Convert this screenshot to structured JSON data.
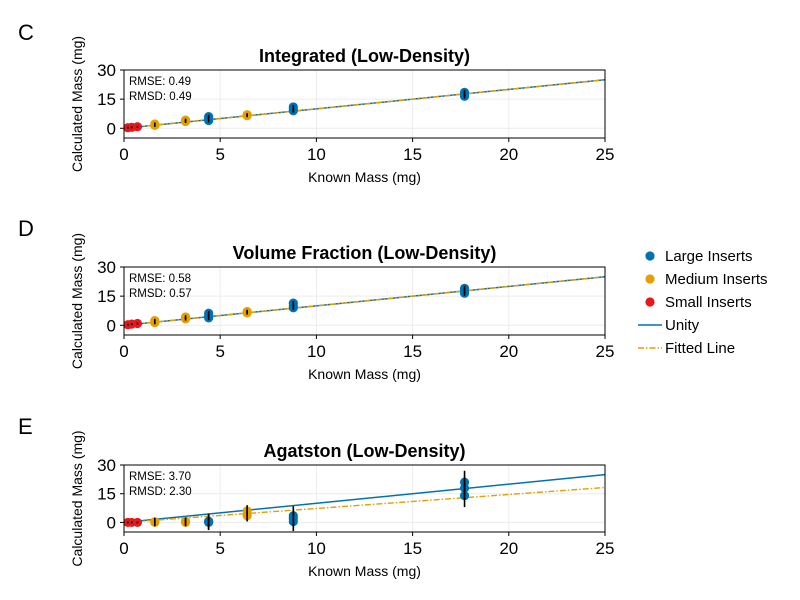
{
  "chart_data": [
    {
      "type": "scatter",
      "panel_label": "C",
      "title": "Integrated (Low-Density)",
      "xlabel": "Known Mass (mg)",
      "ylabel": "Calculated Mass (mg)",
      "xlim": [
        0,
        25
      ],
      "ylim": [
        -5,
        30
      ],
      "xticks": [
        0,
        5,
        10,
        15,
        20,
        25
      ],
      "yticks": [
        0,
        15,
        30
      ],
      "grid": true,
      "stats": [
        "RMSE: 0.49",
        "RMSD: 0.49"
      ],
      "series": [
        {
          "name": "Large Inserts",
          "color": "#0072b2",
          "x": [
            4.4,
            4.4,
            4.4,
            8.8,
            8.8,
            8.8,
            17.7,
            17.7,
            17.7
          ],
          "y": [
            4.0,
            5.0,
            6.0,
            9.0,
            10.0,
            11.0,
            16.5,
            17.5,
            18.5
          ],
          "err": [
            1.0,
            1.0,
            1.0,
            1.0,
            1.0,
            1.0,
            1.2,
            1.2,
            1.2
          ]
        },
        {
          "name": "Medium Inserts",
          "color": "#e69f00",
          "x": [
            1.6,
            1.6,
            3.2,
            3.2,
            6.4,
            6.4
          ],
          "y": [
            1.5,
            2.2,
            3.5,
            4.2,
            6.5,
            7.0
          ],
          "err": [
            0.8,
            0.8,
            0.8,
            0.8,
            0.8,
            0.8
          ]
        },
        {
          "name": "Small Inserts",
          "color": "#e31a1c",
          "x": [
            0.2,
            0.4,
            0.7
          ],
          "y": [
            0.3,
            0.5,
            0.8
          ],
          "err": [
            0.5,
            0.5,
            0.5
          ]
        }
      ],
      "unity": {
        "name": "Unity",
        "color": "#0072b2",
        "slope": 1,
        "intercept": 0
      },
      "fit": {
        "name": "Fitted Line",
        "color": "#e69f00",
        "slope": 1.0,
        "intercept": 0
      }
    },
    {
      "type": "scatter",
      "panel_label": "D",
      "title": "Volume Fraction (Low-Density)",
      "xlabel": "Known Mass (mg)",
      "ylabel": "Calculated Mass (mg)",
      "xlim": [
        0,
        25
      ],
      "ylim": [
        -5,
        30
      ],
      "xticks": [
        0,
        5,
        10,
        15,
        20,
        25
      ],
      "yticks": [
        0,
        15,
        30
      ],
      "grid": true,
      "stats": [
        "RMSE: 0.58",
        "RMSD: 0.57"
      ],
      "series": [
        {
          "name": "Large Inserts",
          "color": "#0072b2",
          "x": [
            4.4,
            4.4,
            4.4,
            8.8,
            8.8,
            8.8,
            17.7,
            17.7,
            17.7
          ],
          "y": [
            3.8,
            5.0,
            6.2,
            9.0,
            10.2,
            11.4,
            16.5,
            17.7,
            19.0
          ],
          "err": [
            1.1,
            1.1,
            1.1,
            1.1,
            1.1,
            1.1,
            1.3,
            1.3,
            1.3
          ]
        },
        {
          "name": "Medium Inserts",
          "color": "#e69f00",
          "x": [
            1.6,
            1.6,
            3.2,
            3.2,
            6.4,
            6.4
          ],
          "y": [
            1.4,
            2.4,
            3.3,
            4.3,
            6.4,
            7.1
          ],
          "err": [
            0.9,
            0.9,
            0.9,
            0.9,
            0.9,
            0.9
          ]
        },
        {
          "name": "Small Inserts",
          "color": "#e31a1c",
          "x": [
            0.2,
            0.4,
            0.7
          ],
          "y": [
            0.3,
            0.6,
            0.9
          ],
          "err": [
            0.5,
            0.5,
            0.5
          ]
        }
      ],
      "unity": {
        "name": "Unity",
        "color": "#0072b2",
        "slope": 1,
        "intercept": 0
      },
      "fit": {
        "name": "Fitted Line",
        "color": "#e69f00",
        "slope": 1.0,
        "intercept": 0
      }
    },
    {
      "type": "scatter",
      "panel_label": "E",
      "title": "Agatston (Low-Density)",
      "xlabel": "Known Mass (mg)",
      "ylabel": "Calculated Mass (mg)",
      "xlim": [
        0,
        25
      ],
      "ylim": [
        -5,
        30
      ],
      "xticks": [
        0,
        5,
        10,
        15,
        20,
        25
      ],
      "yticks": [
        0,
        15,
        30
      ],
      "grid": true,
      "stats": [
        "RMSE: 3.70",
        "RMSD: 2.30"
      ],
      "series": [
        {
          "name": "Large Inserts",
          "color": "#0072b2",
          "x": [
            4.4,
            4.4,
            4.4,
            8.8,
            8.8,
            8.8,
            17.7,
            17.7,
            17.7
          ],
          "y": [
            0.0,
            0.3,
            0.6,
            0.5,
            2.0,
            3.5,
            14.0,
            18.0,
            21.0
          ],
          "err": [
            4.0,
            4.0,
            4.0,
            5.0,
            5.0,
            5.0,
            6.0,
            6.0,
            6.0
          ]
        },
        {
          "name": "Medium Inserts",
          "color": "#e69f00",
          "x": [
            1.6,
            1.6,
            3.2,
            3.2,
            6.4,
            6.4
          ],
          "y": [
            0.0,
            0.4,
            0.0,
            0.6,
            3.5,
            6.0
          ],
          "err": [
            2.0,
            2.0,
            2.0,
            2.0,
            3.0,
            3.0
          ]
        },
        {
          "name": "Small Inserts",
          "color": "#e31a1c",
          "x": [
            0.2,
            0.4,
            0.7
          ],
          "y": [
            0.0,
            0.0,
            0.0
          ],
          "err": [
            0.5,
            0.5,
            0.5
          ]
        }
      ],
      "unity": {
        "name": "Unity",
        "color": "#0072b2",
        "slope": 1,
        "intercept": 0
      },
      "fit": {
        "name": "Fitted Line",
        "color": "#e69f00",
        "slope": 0.73,
        "intercept": 0
      }
    }
  ],
  "legend": {
    "placement": "right",
    "items": [
      {
        "label": "Large Inserts",
        "kind": "marker",
        "color": "#0072b2"
      },
      {
        "label": "Medium Inserts",
        "kind": "marker",
        "color": "#e69f00"
      },
      {
        "label": "Small Inserts",
        "kind": "marker",
        "color": "#e31a1c"
      },
      {
        "label": "Unity",
        "kind": "line",
        "color": "#0072b2"
      },
      {
        "label": "Fitted Line",
        "kind": "dashdot",
        "color": "#e69f00"
      }
    ]
  }
}
